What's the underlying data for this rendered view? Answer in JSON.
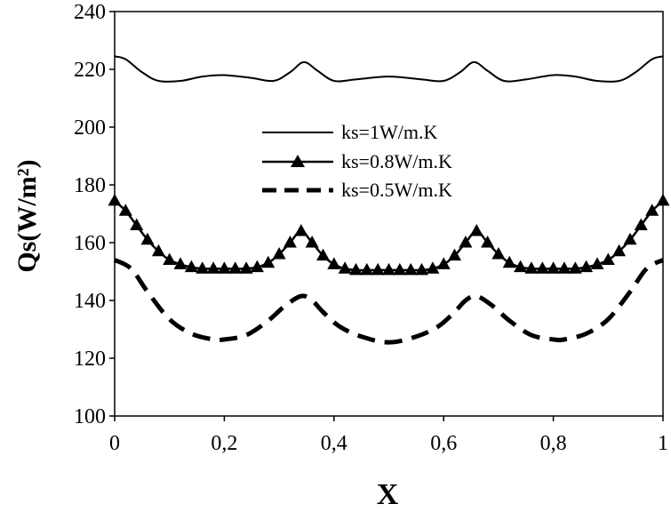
{
  "chart_data": {
    "type": "line",
    "title": "",
    "xlabel": "X",
    "ylabel": "Qs(W/m²)",
    "xlim": [
      0,
      1
    ],
    "ylim": [
      100,
      240
    ],
    "xticks": [
      0,
      0.2,
      0.4,
      0.6,
      0.8,
      1
    ],
    "xtick_labels": [
      "0",
      "0,2",
      "0,4",
      "0,6",
      "0,8",
      "1"
    ],
    "yticks": [
      100,
      120,
      140,
      160,
      180,
      200,
      220,
      240
    ],
    "ytick_labels": [
      "100",
      "120",
      "140",
      "160",
      "180",
      "200",
      "220",
      "240"
    ],
    "grid": false,
    "legend_position": "center",
    "series": [
      {
        "name": "ks=1W/m.K",
        "style": "solid",
        "marker": "none",
        "x": [
          0,
          0.02,
          0.05,
          0.08,
          0.12,
          0.16,
          0.2,
          0.25,
          0.29,
          0.32,
          0.345,
          0.37,
          0.4,
          0.44,
          0.5,
          0.56,
          0.6,
          0.63,
          0.655,
          0.68,
          0.71,
          0.75,
          0.8,
          0.84,
          0.88,
          0.92,
          0.95,
          0.98,
          1.0
        ],
        "y": [
          224.5,
          223.5,
          219,
          216,
          216,
          217.5,
          218,
          217,
          216,
          219,
          222.5,
          219.5,
          216,
          216.5,
          217.5,
          216.5,
          216,
          219,
          222.5,
          219.5,
          216,
          216.5,
          218,
          217.5,
          216,
          216,
          219,
          223.5,
          224.5
        ]
      },
      {
        "name": "ks=0.8W/m.K",
        "style": "solid",
        "marker": "triangle",
        "x": [
          0,
          0.02,
          0.04,
          0.06,
          0.08,
          0.1,
          0.12,
          0.14,
          0.16,
          0.18,
          0.2,
          0.22,
          0.24,
          0.26,
          0.28,
          0.3,
          0.32,
          0.34,
          0.36,
          0.38,
          0.4,
          0.42,
          0.44,
          0.46,
          0.48,
          0.5,
          0.52,
          0.54,
          0.56,
          0.58,
          0.6,
          0.62,
          0.64,
          0.66,
          0.68,
          0.7,
          0.72,
          0.74,
          0.76,
          0.78,
          0.8,
          0.82,
          0.84,
          0.86,
          0.88,
          0.9,
          0.92,
          0.94,
          0.96,
          0.98,
          1.0
        ],
        "y": [
          174.5,
          171,
          166,
          161,
          157,
          154,
          152.5,
          151.5,
          151,
          151,
          151,
          151,
          151,
          151.5,
          153,
          156,
          160,
          164,
          160,
          155.5,
          152.5,
          151,
          150.5,
          150.5,
          150.5,
          150.5,
          150.5,
          150.5,
          150.5,
          151,
          152.5,
          155.5,
          160,
          164,
          160,
          156,
          153,
          151.5,
          151,
          151,
          151,
          151,
          151,
          151.5,
          152.5,
          154,
          157,
          161,
          166,
          171,
          174.5
        ]
      },
      {
        "name": "ks=0.5W/m.K",
        "style": "dashed",
        "marker": "none",
        "x": [
          0,
          0.03,
          0.06,
          0.1,
          0.14,
          0.18,
          0.2,
          0.24,
          0.28,
          0.31,
          0.34,
          0.36,
          0.38,
          0.41,
          0.45,
          0.5,
          0.55,
          0.59,
          0.62,
          0.64,
          0.66,
          0.69,
          0.72,
          0.76,
          0.8,
          0.82,
          0.86,
          0.9,
          0.94,
          0.97,
          1.0
        ],
        "y": [
          154,
          151,
          143,
          133.5,
          128.5,
          126.5,
          126.5,
          128,
          133,
          138,
          141.5,
          140,
          136,
          131,
          127.5,
          125.5,
          127.5,
          131,
          136,
          140,
          141.5,
          138,
          133,
          128,
          126.5,
          126.5,
          128.5,
          133.5,
          143,
          151,
          154
        ]
      }
    ]
  }
}
